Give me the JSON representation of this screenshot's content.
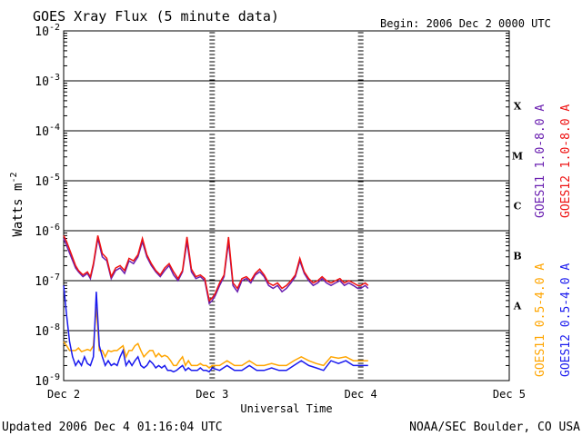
{
  "chart_data": {
    "type": "line",
    "title": "GOES Xray Flux (5 minute data)",
    "begin_label": "Begin:  2006 Dec 2 0000 UTC",
    "ylabel": "Watts m",
    "ylabel_exponent": "-2",
    "xlabel": "Universal Time",
    "y_scale": "log",
    "ylim": [
      1e-09,
      0.01
    ],
    "y_ticks": [
      {
        "base": "10",
        "exp": "-2"
      },
      {
        "base": "10",
        "exp": "-3"
      },
      {
        "base": "10",
        "exp": "-4"
      },
      {
        "base": "10",
        "exp": "-5"
      },
      {
        "base": "10",
        "exp": "-6"
      },
      {
        "base": "10",
        "exp": "-7"
      },
      {
        "base": "10",
        "exp": "-8"
      },
      {
        "base": "10",
        "exp": "-9"
      }
    ],
    "x_domain": [
      "Dec 2",
      "Dec 5"
    ],
    "x_ticks": [
      "Dec 2",
      "Dec 3",
      "Dec 4",
      "Dec 5"
    ],
    "flare_classes": [
      "X",
      "M",
      "C",
      "B",
      "A"
    ],
    "grid": "horizontal lines at each decade",
    "legend_placement": "right, rotated vertical",
    "series": [
      {
        "name": "GOES11 1.0-8.0 A",
        "color": "#6a1fb0",
        "x_days": [
          0.0,
          0.02,
          0.05,
          0.08,
          0.1,
          0.13,
          0.16,
          0.18,
          0.2,
          0.23,
          0.26,
          0.29,
          0.32,
          0.35,
          0.38,
          0.41,
          0.44,
          0.47,
          0.5,
          0.53,
          0.56,
          0.59,
          0.62,
          0.65,
          0.68,
          0.71,
          0.74,
          0.77,
          0.8,
          0.83,
          0.86,
          0.89,
          0.92,
          0.95,
          0.98,
          1.0,
          1.02,
          1.05,
          1.08,
          1.11,
          1.14,
          1.17,
          1.2,
          1.23,
          1.26,
          1.29,
          1.32,
          1.35,
          1.38,
          1.41,
          1.44,
          1.47,
          1.5,
          1.53,
          1.56,
          1.59,
          1.62,
          1.65,
          1.68,
          1.71,
          1.74,
          1.77,
          1.8,
          1.83,
          1.86,
          1.89,
          1.92,
          1.95,
          1.98,
          2.0,
          2.03,
          2.05
        ],
        "values": [
          7e-07,
          5e-07,
          3e-07,
          1.8e-07,
          1.5e-07,
          1.2e-07,
          1.4e-07,
          1.1e-07,
          2e-07,
          7e-07,
          3e-07,
          2.5e-07,
          1.1e-07,
          1.6e-07,
          1.8e-07,
          1.4e-07,
          2.5e-07,
          2.2e-07,
          3e-07,
          6e-07,
          3e-07,
          2e-07,
          1.5e-07,
          1.2e-07,
          1.6e-07,
          2e-07,
          1.3e-07,
          1e-07,
          1.5e-07,
          6e-07,
          1.5e-07,
          1.1e-07,
          1.2e-07,
          1e-07,
          3.5e-08,
          4e-08,
          5e-08,
          8e-08,
          1.2e-07,
          6e-07,
          8e-08,
          6e-08,
          1e-07,
          1.1e-07,
          9e-08,
          1.3e-07,
          1.5e-07,
          1.2e-07,
          8e-08,
          7e-08,
          8e-08,
          6e-08,
          7e-08,
          9e-08,
          1.2e-07,
          2.5e-07,
          1.4e-07,
          1e-07,
          8e-08,
          9e-08,
          1.1e-07,
          9e-08,
          8e-08,
          9e-08,
          1e-07,
          8e-08,
          9e-08,
          8e-08,
          7e-08,
          7e-08,
          8e-08,
          7e-08
        ]
      },
      {
        "name": "GOES12 1.0-8.0 A",
        "color": "#ee1111",
        "x_days": [
          0.0,
          0.02,
          0.05,
          0.08,
          0.1,
          0.13,
          0.16,
          0.18,
          0.2,
          0.23,
          0.26,
          0.29,
          0.32,
          0.35,
          0.38,
          0.41,
          0.44,
          0.47,
          0.5,
          0.53,
          0.56,
          0.59,
          0.62,
          0.65,
          0.68,
          0.71,
          0.74,
          0.77,
          0.8,
          0.83,
          0.86,
          0.89,
          0.92,
          0.95,
          0.98,
          1.0,
          1.02,
          1.05,
          1.08,
          1.11,
          1.14,
          1.17,
          1.2,
          1.23,
          1.26,
          1.29,
          1.32,
          1.35,
          1.38,
          1.41,
          1.44,
          1.47,
          1.5,
          1.53,
          1.56,
          1.59,
          1.62,
          1.65,
          1.68,
          1.71,
          1.74,
          1.77,
          1.8,
          1.83,
          1.86,
          1.89,
          1.92,
          1.95,
          1.98,
          2.0,
          2.03,
          2.05
        ],
        "values": [
          8e-07,
          6e-07,
          3.5e-07,
          2e-07,
          1.6e-07,
          1.3e-07,
          1.5e-07,
          1.2e-07,
          2.2e-07,
          8e-07,
          3.5e-07,
          2.8e-07,
          1.2e-07,
          1.8e-07,
          2e-07,
          1.6e-07,
          2.8e-07,
          2.5e-07,
          3.3e-07,
          7e-07,
          3.3e-07,
          2.2e-07,
          1.6e-07,
          1.3e-07,
          1.8e-07,
          2.2e-07,
          1.5e-07,
          1.1e-07,
          1.6e-07,
          7.5e-07,
          1.7e-07,
          1.2e-07,
          1.3e-07,
          1.1e-07,
          4e-08,
          4.5e-08,
          5.5e-08,
          9e-08,
          1.3e-07,
          7.5e-07,
          9e-08,
          7e-08,
          1.1e-07,
          1.2e-07,
          1e-07,
          1.4e-07,
          1.7e-07,
          1.3e-07,
          9e-08,
          8e-08,
          9e-08,
          7e-08,
          8e-08,
          1e-07,
          1.3e-07,
          2.8e-07,
          1.5e-07,
          1.1e-07,
          9e-08,
          1e-07,
          1.2e-07,
          1e-07,
          9e-08,
          1e-07,
          1.1e-07,
          9e-08,
          1e-07,
          9e-08,
          8e-08,
          8e-08,
          9e-08,
          8e-08
        ]
      },
      {
        "name": "GOES11 0.5-4.0 A",
        "color": "#ffa500",
        "x_days": [
          0.0,
          0.02,
          0.04,
          0.06,
          0.08,
          0.1,
          0.12,
          0.14,
          0.16,
          0.18,
          0.2,
          0.22,
          0.24,
          0.26,
          0.28,
          0.3,
          0.32,
          0.34,
          0.36,
          0.38,
          0.4,
          0.42,
          0.44,
          0.46,
          0.48,
          0.5,
          0.52,
          0.54,
          0.56,
          0.58,
          0.6,
          0.62,
          0.64,
          0.66,
          0.68,
          0.7,
          0.72,
          0.74,
          0.76,
          0.78,
          0.8,
          0.82,
          0.84,
          0.86,
          0.88,
          0.9,
          0.92,
          0.94,
          0.96,
          0.98,
          1.0,
          1.05,
          1.1,
          1.15,
          1.2,
          1.25,
          1.3,
          1.35,
          1.4,
          1.45,
          1.5,
          1.55,
          1.6,
          1.65,
          1.7,
          1.75,
          1.8,
          1.85,
          1.9,
          1.95,
          2.0,
          2.02,
          2.05
        ],
        "values": [
          6e-09,
          5e-09,
          4e-09,
          4e-09,
          4e-09,
          4.5e-09,
          3.8e-09,
          4e-09,
          4.2e-09,
          4e-09,
          5e-09,
          3e-08,
          4e-09,
          4e-09,
          3e-09,
          4e-09,
          3.8e-09,
          4e-09,
          4e-09,
          4.5e-09,
          5e-09,
          3e-09,
          4e-09,
          4e-09,
          5e-09,
          5.5e-09,
          4e-09,
          3e-09,
          3.5e-09,
          4e-09,
          4e-09,
          3e-09,
          3.5e-09,
          3e-09,
          3.2e-09,
          3e-09,
          2.5e-09,
          2e-09,
          2e-09,
          2.5e-09,
          3e-09,
          2e-09,
          2.5e-09,
          2e-09,
          2e-09,
          2e-09,
          2.2e-09,
          2e-09,
          2e-09,
          1.8e-09,
          2e-09,
          2e-09,
          2.5e-09,
          2e-09,
          2e-09,
          2.5e-09,
          2e-09,
          2e-09,
          2.2e-09,
          2e-09,
          2e-09,
          2.5e-09,
          3e-09,
          2.5e-09,
          2.2e-09,
          2e-09,
          3e-09,
          2.8e-09,
          3e-09,
          2.5e-09,
          2.5e-09,
          2.5e-09,
          2.5e-09
        ]
      },
      {
        "name": "GOES12 0.5-4.0 A",
        "color": "#1a1aee",
        "x_days": [
          0.0,
          0.02,
          0.04,
          0.06,
          0.08,
          0.1,
          0.12,
          0.14,
          0.16,
          0.18,
          0.2,
          0.22,
          0.24,
          0.26,
          0.28,
          0.3,
          0.32,
          0.34,
          0.36,
          0.38,
          0.4,
          0.42,
          0.44,
          0.46,
          0.48,
          0.5,
          0.52,
          0.54,
          0.56,
          0.58,
          0.6,
          0.62,
          0.64,
          0.66,
          0.68,
          0.7,
          0.72,
          0.74,
          0.76,
          0.78,
          0.8,
          0.82,
          0.84,
          0.86,
          0.88,
          0.9,
          0.92,
          0.94,
          0.96,
          0.98,
          1.0,
          1.05,
          1.1,
          1.15,
          1.2,
          1.25,
          1.3,
          1.35,
          1.4,
          1.45,
          1.5,
          1.55,
          1.6,
          1.65,
          1.7,
          1.75,
          1.8,
          1.85,
          1.9,
          1.95,
          2.0,
          2.02,
          2.05
        ],
        "values": [
          8e-08,
          2e-08,
          6e-09,
          3e-09,
          2e-09,
          2.5e-09,
          2e-09,
          3e-09,
          2.2e-09,
          2e-09,
          3e-09,
          6e-08,
          5e-09,
          3e-09,
          2e-09,
          2.5e-09,
          2e-09,
          2.2e-09,
          2e-09,
          3e-09,
          4e-09,
          2e-09,
          2.5e-09,
          2e-09,
          2.5e-09,
          3e-09,
          2e-09,
          1.8e-09,
          2e-09,
          2.5e-09,
          2.2e-09,
          1.8e-09,
          2e-09,
          1.8e-09,
          2e-09,
          1.6e-09,
          1.6e-09,
          1.5e-09,
          1.6e-09,
          1.8e-09,
          2e-09,
          1.6e-09,
          1.8e-09,
          1.6e-09,
          1.6e-09,
          1.6e-09,
          1.8e-09,
          1.6e-09,
          1.6e-09,
          1.5e-09,
          1.8e-09,
          1.6e-09,
          2e-09,
          1.6e-09,
          1.6e-09,
          2e-09,
          1.6e-09,
          1.6e-09,
          1.8e-09,
          1.6e-09,
          1.6e-09,
          2e-09,
          2.5e-09,
          2e-09,
          1.8e-09,
          1.6e-09,
          2.5e-09,
          2.2e-09,
          2.5e-09,
          2e-09,
          2e-09,
          2e-09,
          2e-09
        ]
      }
    ]
  },
  "footer": {
    "updated": "Updated 2006 Dec  4 01:16:04 UTC",
    "credit": "NOAA/SEC Boulder, CO USA"
  }
}
